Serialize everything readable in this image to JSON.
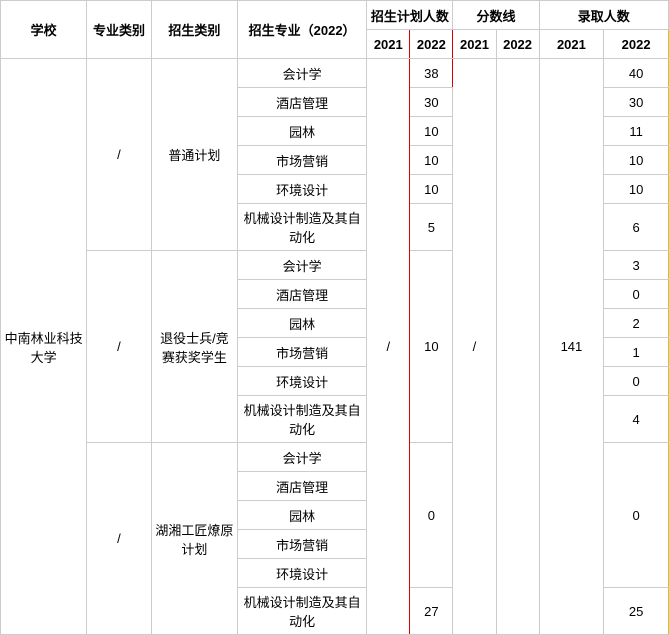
{
  "headers": {
    "school": "学校",
    "major_category": "专业类别",
    "admission_category": "招生类别",
    "major_2022": "招生专业（2022）",
    "plan_count": "招生计划人数",
    "score_line": "分数线",
    "admit_count": "录取人数",
    "y2021": "2021",
    "y2022": "2022"
  },
  "school": "中南林业科技大学",
  "slash": "/",
  "plan_2021_val": "/",
  "score_2021_val": "/",
  "admit_2021_val": "141",
  "groups": [
    {
      "category": "普通计划",
      "rows": [
        {
          "major": "会计学",
          "plan2022": "38",
          "admit2022": "40"
        },
        {
          "major": "酒店管理",
          "plan2022": "30",
          "admit2022": "30"
        },
        {
          "major": "园林",
          "plan2022": "10",
          "admit2022": "11"
        },
        {
          "major": "市场营销",
          "plan2022": "10",
          "admit2022": "10"
        },
        {
          "major": "环境设计",
          "plan2022": "10",
          "admit2022": "10"
        },
        {
          "major": "机械设计制造及其自动化",
          "plan2022": "5",
          "admit2022": "6"
        }
      ]
    },
    {
      "category": "退役士兵/竞赛获奖学生",
      "plan2022_group": "10",
      "rows": [
        {
          "major": "会计学",
          "admit2022": "3"
        },
        {
          "major": "酒店管理",
          "admit2022": "0"
        },
        {
          "major": "园林",
          "admit2022": "2"
        },
        {
          "major": "市场营销",
          "admit2022": "1"
        },
        {
          "major": "环境设计",
          "admit2022": "0"
        },
        {
          "major": "机械设计制造及其自动化",
          "admit2022": "4"
        }
      ]
    },
    {
      "category": "湖湘工匠燎原计划",
      "rows_a": [
        {
          "major": "会计学"
        },
        {
          "major": "酒店管理"
        },
        {
          "major": "园林"
        },
        {
          "major": "市场营销"
        },
        {
          "major": "环境设计"
        }
      ],
      "plan2022_a": "0",
      "admit2022_a": "0",
      "row_b": {
        "major": "机械设计制造及其自动化",
        "plan2022": "27",
        "admit2022": "25"
      }
    }
  ],
  "style": {
    "border_color": "#cccccc",
    "red": "#dd0000",
    "yellow": "#cccc00",
    "font_size": 13,
    "background": "#ffffff"
  }
}
